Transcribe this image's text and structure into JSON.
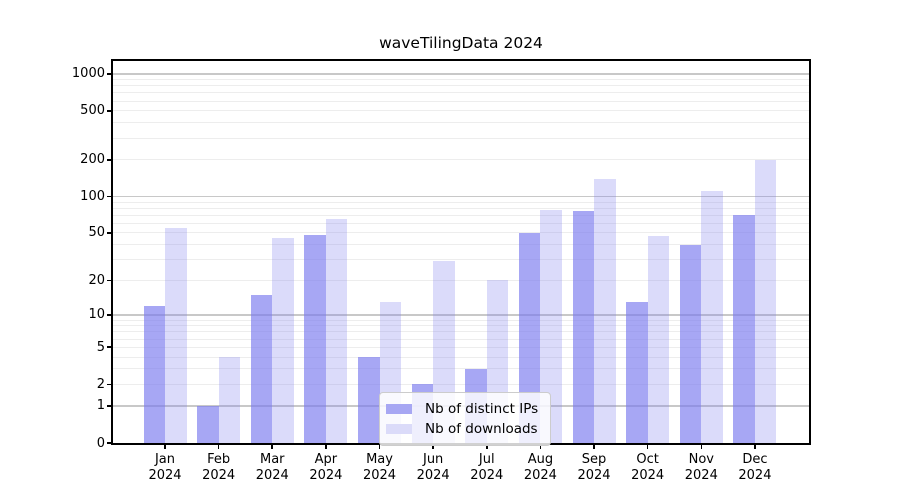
{
  "title": "waveTilingData 2024",
  "chart_data": {
    "type": "bar",
    "title": "waveTilingData 2024",
    "categories": [
      "Jan 2024",
      "Feb 2024",
      "Mar 2024",
      "Apr 2024",
      "May 2024",
      "Jun 2024",
      "Jul 2024",
      "Aug 2024",
      "Sep 2024",
      "Oct 2024",
      "Nov 2024",
      "Dec 2024"
    ],
    "series": [
      {
        "name": "Nb of distinct IPs",
        "solid_color": "#a7a7f3",
        "fill": "rgba(121,121,238,0.66)",
        "values": [
          12,
          1,
          15,
          48,
          4,
          2,
          3,
          50,
          76,
          13,
          40,
          70
        ]
      },
      {
        "name": "Nb of downloads",
        "solid_color": "#dbdbf9",
        "fill": "rgba(121,121,238,0.27)",
        "values": [
          55,
          4,
          45,
          65,
          13,
          29,
          20,
          77,
          140,
          47,
          110,
          200
        ]
      }
    ],
    "xlabel": "",
    "ylabel": "",
    "y_scale": "log10(1+x)",
    "y_ticks": [
      0,
      1,
      2,
      5,
      10,
      20,
      50,
      100,
      200,
      500,
      1000
    ],
    "y_major_gridlines": [
      1,
      10,
      100,
      1000
    ],
    "y_minor_gridlines": [
      2,
      3,
      4,
      5,
      6,
      7,
      8,
      9,
      20,
      30,
      40,
      50,
      60,
      70,
      80,
      90,
      200,
      300,
      400,
      500,
      600,
      700,
      800,
      900
    ],
    "ylim": [
      0,
      1265
    ],
    "grid": true,
    "legend_position": "lower center",
    "colors": {
      "frame": "#000000",
      "major_grid": "#c8c8c8",
      "minor_grid": "#ededed",
      "text": "#000000",
      "legend_border": "#cccccc"
    }
  }
}
